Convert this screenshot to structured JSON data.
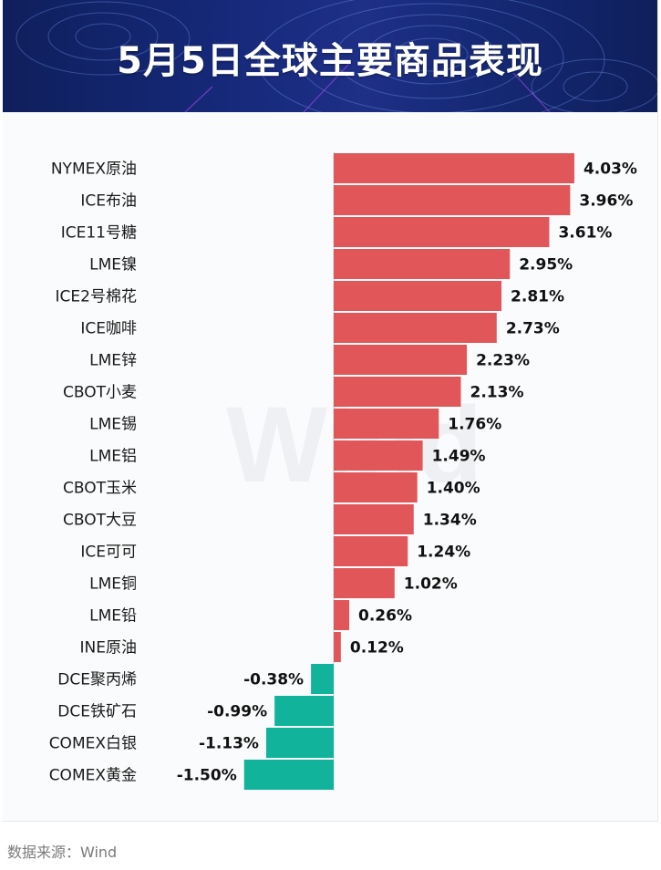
{
  "header": {
    "title": "5月5日全球主要商品表现"
  },
  "watermark": "Wind",
  "footer": {
    "source": "数据来源：Wind"
  },
  "colors": {
    "positive": "#e15759",
    "negative": "#12b39b",
    "header_bg": "#16297a"
  },
  "chart_data": {
    "type": "bar",
    "orientation": "horizontal",
    "title": "5月5日全球主要商品表现",
    "xlabel": "",
    "ylabel": "",
    "unit": "%",
    "xlim": [
      -1.5,
      4.03
    ],
    "categories": [
      "NYMEX原油",
      "ICE布油",
      "ICE11号糖",
      "LME镍",
      "ICE2号棉花",
      "ICE咖啡",
      "LME锌",
      "CBOT小麦",
      "LME锡",
      "LME铝",
      "CBOT玉米",
      "CBOT大豆",
      "ICE可可",
      "LME铜",
      "LME铅",
      "INE原油",
      "DCE聚丙烯",
      "DCE铁矿石",
      "COMEX白银",
      "COMEX黄金"
    ],
    "values": [
      4.03,
      3.96,
      3.61,
      2.95,
      2.81,
      2.73,
      2.23,
      2.13,
      1.76,
      1.49,
      1.4,
      1.34,
      1.24,
      1.02,
      0.26,
      0.12,
      -0.38,
      -0.99,
      -1.13,
      -1.5
    ],
    "labels": [
      "4.03%",
      "3.96%",
      "3.61%",
      "2.95%",
      "2.81%",
      "2.73%",
      "2.23%",
      "2.13%",
      "1.76%",
      "1.49%",
      "1.40%",
      "1.34%",
      "1.24%",
      "1.02%",
      "0.26%",
      "0.12%",
      "-0.38%",
      "-0.99%",
      "-1.13%",
      "-1.50%"
    ]
  }
}
